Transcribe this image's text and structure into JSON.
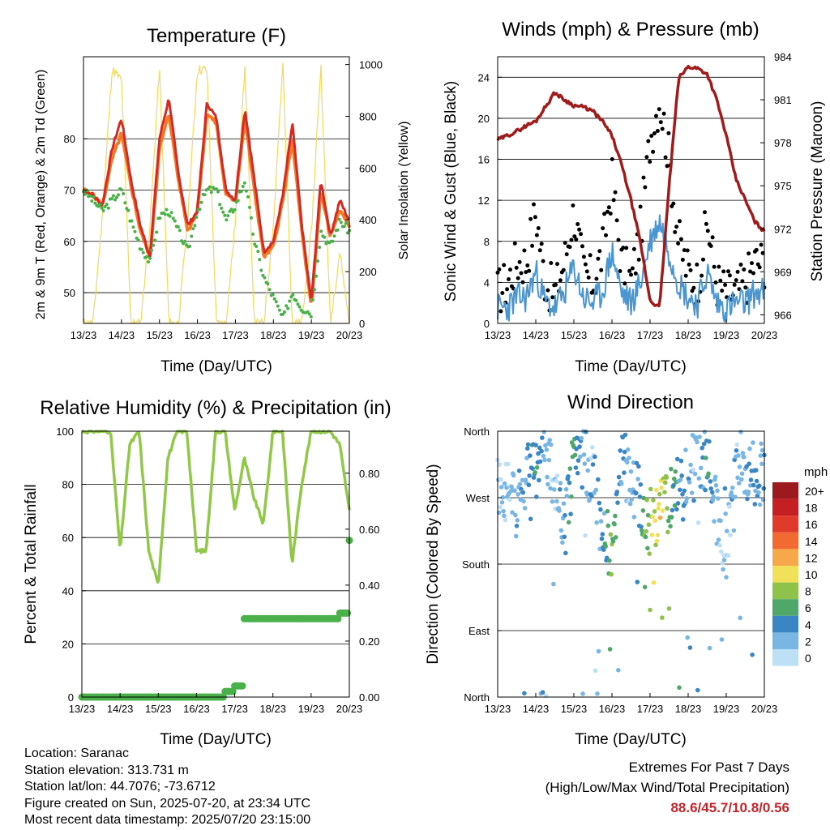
{
  "colors": {
    "t2m": "#d42a24",
    "t9m": "#f07a26",
    "dewpoint": "#4ab04a",
    "solar": "#f5d75a",
    "wind": "#4a96d2",
    "gust": "#000000",
    "pressure": "#a01c1c",
    "rh": "#92c84a",
    "rain": "#4ab04a"
  },
  "x_ticks": [
    "13/23",
    "14/23",
    "15/23",
    "16/23",
    "17/23",
    "18/23",
    "19/23",
    "20/23"
  ],
  "x_label": "Time (Day/UTC)",
  "footer": {
    "location": "Location: Saranac",
    "elevation": "Station elevation: 313.731 m",
    "latlon": "Station lat/lon: 44.7076; -73.6712",
    "created": "Figure created on Sun, 2025-07-20, at 23:34 UTC",
    "recent": "Most recent data timestamp: 2025/07/20 23:15:00",
    "extremes_title": "Extremes For Past 7 Days",
    "extremes_sub": "(High/Low/Max Wind/Total Precipitation)",
    "extremes_values": "88.6/45.7/10.8/0.56"
  },
  "chart_data": [
    {
      "type": "line",
      "title": "Temperature (F)",
      "xlabel": "Time (Day/UTC)",
      "ylabel": "2m & 9m T (Red, Orange) & 2m Td (Green)",
      "y2label": "Solar Insolation (Yellow)",
      "ylim": [
        44,
        96
      ],
      "yticks": [
        50,
        60,
        70,
        80
      ],
      "y2lim": [
        0,
        1030
      ],
      "y2ticks": [
        0,
        200,
        400,
        600,
        800,
        1000
      ],
      "x": [
        13.0,
        13.25,
        13.5,
        13.75,
        14.0,
        14.25,
        14.5,
        14.75,
        15.0,
        15.25,
        15.5,
        15.75,
        16.0,
        16.25,
        16.5,
        16.75,
        17.0,
        17.25,
        17.5,
        17.75,
        18.0,
        18.25,
        18.5,
        18.75,
        19.0,
        19.25,
        19.5,
        19.75,
        20.0
      ],
      "series": [
        {
          "values": [
            70,
            69,
            67,
            78,
            84,
            72,
            63,
            57,
            80,
            88,
            73,
            63,
            66,
            87,
            84,
            70,
            68,
            86,
            72,
            58,
            60,
            69,
            83,
            63,
            48,
            72,
            61,
            68,
            64
          ]
        },
        {
          "values": [
            70,
            69,
            67,
            76,
            81,
            71,
            62,
            57,
            78,
            85,
            72,
            62,
            66,
            85,
            83,
            69,
            68,
            84,
            70,
            57,
            59,
            68,
            80,
            62,
            47,
            70,
            61,
            66,
            63
          ]
        },
        {
          "values": [
            70,
            68,
            66,
            68,
            70,
            64,
            59,
            56,
            65,
            66,
            62,
            58,
            66,
            70,
            70,
            64,
            67,
            72,
            60,
            53,
            49,
            45,
            50,
            47,
            46,
            62,
            59,
            64,
            62
          ]
        },
        {
          "values": [
            0,
            0,
            420,
            980,
            940,
            0,
            0,
            380,
            990,
            0,
            0,
            420,
            980,
            980,
            0,
            0,
            400,
            990,
            0,
            0,
            380,
            1000,
            0,
            0,
            350,
            1000,
            0,
            280,
            0
          ]
        }
      ]
    },
    {
      "type": "scatter",
      "title": "Winds (mph) & Pressure (mb)",
      "xlabel": "Time (Day/UTC)",
      "ylabel": "Sonic Wind & Gust (Blue, Black)",
      "y2label": "Station Pressure (Maroon)",
      "ylim": [
        0,
        26
      ],
      "yticks": [
        0,
        4,
        8,
        12,
        16,
        20,
        24
      ],
      "y2lim": [
        965.4,
        984.0
      ],
      "y2ticks": [
        966,
        969,
        972,
        975,
        978,
        981,
        984
      ],
      "x": [
        13.0,
        13.25,
        13.5,
        13.75,
        14.0,
        14.25,
        14.5,
        14.75,
        15.0,
        15.25,
        15.5,
        15.75,
        16.0,
        16.25,
        16.5,
        16.75,
        17.0,
        17.25,
        17.5,
        17.75,
        18.0,
        18.25,
        18.5,
        18.75,
        19.0,
        19.25,
        19.5,
        19.75,
        20.0
      ],
      "series": [
        {
          "values": [
            1.5,
            1.5,
            2.5,
            2.5,
            5,
            2,
            1.5,
            3,
            5.5,
            2.5,
            2,
            3,
            7,
            3,
            2,
            4,
            8,
            10,
            7,
            4,
            2.5,
            2,
            5,
            2,
            1.5,
            2,
            2,
            3,
            3
          ]
        },
        {
          "values": [
            3,
            4,
            6,
            6,
            11,
            4,
            3,
            6,
            11,
            5,
            4,
            7,
            14,
            6,
            4,
            9,
            18,
            22,
            16,
            8,
            5,
            4,
            10,
            4,
            3,
            3,
            4,
            6,
            6
          ]
        },
        {
          "values": [
            978.2,
            978.5,
            978.8,
            979.2,
            979.5,
            980.5,
            981.5,
            981.0,
            980.6,
            980.5,
            980.2,
            979.5,
            978.5,
            976.5,
            974.0,
            971.0,
            967.0,
            966.5,
            975.0,
            982.5,
            983.3,
            983.2,
            982.8,
            981.0,
            978.5,
            975.5,
            974.0,
            972.5,
            971.8
          ]
        }
      ]
    },
    {
      "type": "line",
      "title": "Relative Humidity (%) & Precipitation (in)",
      "xlabel": "Time (Day/UTC)",
      "ylabel": "Percent & Total Rainfall",
      "ylim": [
        0,
        100
      ],
      "yticks": [
        0,
        20,
        40,
        60,
        80,
        100
      ],
      "y2lim": [
        0,
        0.95
      ],
      "y2ticks": [
        0.0,
        0.2,
        0.4,
        0.6,
        0.8
      ],
      "y2ticklabels": [
        "0.00",
        "0.20",
        "0.40",
        "0.60",
        "0.80"
      ],
      "x": [
        13.0,
        13.25,
        13.5,
        13.75,
        14.0,
        14.25,
        14.5,
        14.75,
        15.0,
        15.25,
        15.5,
        15.75,
        16.0,
        16.25,
        16.5,
        16.75,
        17.0,
        17.25,
        17.5,
        17.75,
        18.0,
        18.25,
        18.5,
        18.75,
        19.0,
        19.25,
        19.5,
        19.75,
        20.0
      ],
      "series": [
        {
          "values": [
            100,
            100,
            100,
            100,
            55,
            95,
            100,
            55,
            42,
            90,
            100,
            100,
            55,
            55,
            100,
            100,
            70,
            90,
            75,
            65,
            100,
            100,
            50,
            80,
            100,
            100,
            100,
            95,
            70
          ]
        },
        {
          "values": [
            0.0,
            0.0,
            0.0,
            0.0,
            0.0,
            0.0,
            0.0,
            0.0,
            0.0,
            0.0,
            0.0,
            0.0,
            0.0,
            0.0,
            0.0,
            0.02,
            0.04,
            0.28,
            0.28,
            0.28,
            0.28,
            0.28,
            0.28,
            0.28,
            0.28,
            0.28,
            0.28,
            0.3,
            0.56
          ]
        }
      ]
    },
    {
      "type": "scatter",
      "title": "Wind Direction",
      "xlabel": "Time (Day/UTC)",
      "ylabel": "Direction (Colored By Speed)",
      "ylim": [
        0,
        360
      ],
      "yticks": [
        0,
        90,
        180,
        270,
        360
      ],
      "yticklabels": [
        "North",
        "East",
        "South",
        "West",
        "North"
      ],
      "x": [
        13.0,
        13.25,
        13.5,
        13.75,
        14.0,
        14.25,
        14.5,
        14.75,
        15.0,
        15.25,
        15.5,
        15.75,
        16.0,
        16.25,
        16.5,
        16.75,
        17.0,
        17.25,
        17.5,
        17.75,
        18.0,
        18.25,
        18.5,
        18.75,
        19.0,
        19.25,
        19.5,
        19.75,
        20.0
      ],
      "series": [
        {
          "values": [
            290,
            280,
            260,
            300,
            310,
            330,
            300,
            220,
            320,
            320,
            300,
            250,
            180,
            320,
            300,
            260,
            240,
            250,
            260,
            280,
            300,
            330,
            320,
            250,
            200,
            320,
            310,
            300,
            310
          ]
        }
      ],
      "colorbar": {
        "title": "mph",
        "labels": [
          "20+",
          "18",
          "16",
          "14",
          "12",
          "10",
          "8",
          "6",
          "4",
          "2",
          "0"
        ],
        "colors": [
          "#9a1a1d",
          "#c42024",
          "#e03a2a",
          "#f06a32",
          "#f7a84a",
          "#f1e05a",
          "#8fc24a",
          "#4fa86a",
          "#3a86c4",
          "#7ab6e4",
          "#bde0f6"
        ]
      }
    }
  ]
}
